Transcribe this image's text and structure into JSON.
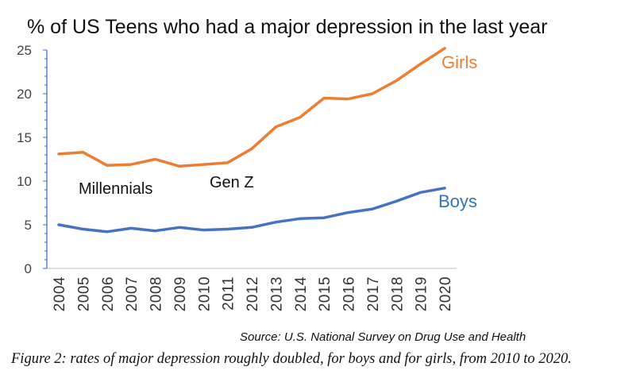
{
  "chart_data": {
    "type": "line",
    "title": "% of US Teens who had a major depression in the last year",
    "x": [
      "2004",
      "2005",
      "2006",
      "2007",
      "2008",
      "2009",
      "2010",
      "2011",
      "2012",
      "2013",
      "2014",
      "2015",
      "2016",
      "2017",
      "2018",
      "2019",
      "2020"
    ],
    "ylim": [
      0,
      25
    ],
    "yticks": [
      0,
      5,
      10,
      15,
      20,
      25
    ],
    "series": [
      {
        "name": "Girls",
        "color": "#ED7D31",
        "values": [
          13.1,
          13.3,
          11.8,
          11.9,
          12.5,
          11.7,
          11.9,
          12.1,
          13.7,
          16.2,
          17.3,
          19.5,
          19.4,
          20.0,
          21.5,
          23.4,
          25.2
        ]
      },
      {
        "name": "Boys",
        "color": "#4472C4",
        "values": [
          5.0,
          4.5,
          4.2,
          4.6,
          4.3,
          4.7,
          4.4,
          4.5,
          4.7,
          5.3,
          5.7,
          5.8,
          6.4,
          6.8,
          7.7,
          8.7,
          9.2
        ]
      }
    ],
    "annotations": [
      {
        "text": "Millennials"
      },
      {
        "text": "Gen Z"
      }
    ],
    "source": "Source: U.S. National Survey on Drug Use and Health",
    "axis_color": "#4472C4",
    "grid": false
  },
  "caption": "Figure 2: rates of major depression roughly doubled, for boys and for girls, from 2010 to 2020."
}
